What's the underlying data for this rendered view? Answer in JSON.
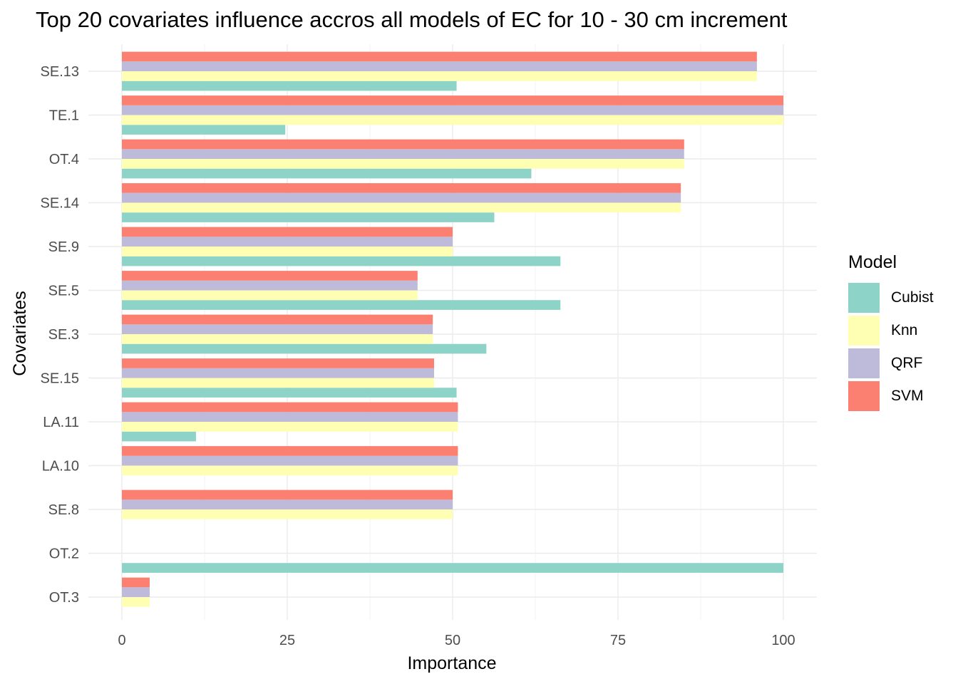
{
  "chart_data": {
    "type": "bar",
    "orientation": "horizontal",
    "title": "Top 20 covariates influence accros all models of EC for 10 - 30 cm increment",
    "xlabel": "Importance",
    "ylabel": "Covariates",
    "xlim": [
      0,
      100
    ],
    "xticks": [
      "0",
      "25",
      "50",
      "75",
      "100"
    ],
    "grid": true,
    "legend_position": "right",
    "legend_title": "Model",
    "categories": [
      "SE.13",
      "TE.1",
      "OT.4",
      "SE.14",
      "SE.9",
      "SE.5",
      "SE.3",
      "SE.15",
      "LA.11",
      "LA.10",
      "SE.8",
      "OT.2",
      "OT.3"
    ],
    "series": [
      {
        "name": "Cubist",
        "color": "#8dd3c7",
        "values": [
          50.6,
          24.7,
          61.9,
          56.3,
          66.3,
          66.3,
          55.1,
          50.6,
          11.2,
          null,
          null,
          100,
          null
        ]
      },
      {
        "name": "Knn",
        "color": "#ffffb3",
        "values": [
          96.0,
          100,
          85.0,
          84.5,
          50.0,
          44.7,
          47.0,
          47.2,
          50.8,
          50.8,
          50.0,
          null,
          4.2
        ]
      },
      {
        "name": "QRF",
        "color": "#bebada",
        "values": [
          96.0,
          100,
          85.0,
          84.5,
          50.0,
          44.7,
          47.0,
          47.2,
          50.8,
          50.8,
          50.0,
          null,
          4.2
        ]
      },
      {
        "name": "SVM",
        "color": "#fb8072",
        "values": [
          96.0,
          100,
          85.0,
          84.5,
          50.0,
          44.7,
          47.0,
          47.2,
          50.8,
          50.8,
          50.0,
          null,
          4.2
        ]
      }
    ]
  }
}
